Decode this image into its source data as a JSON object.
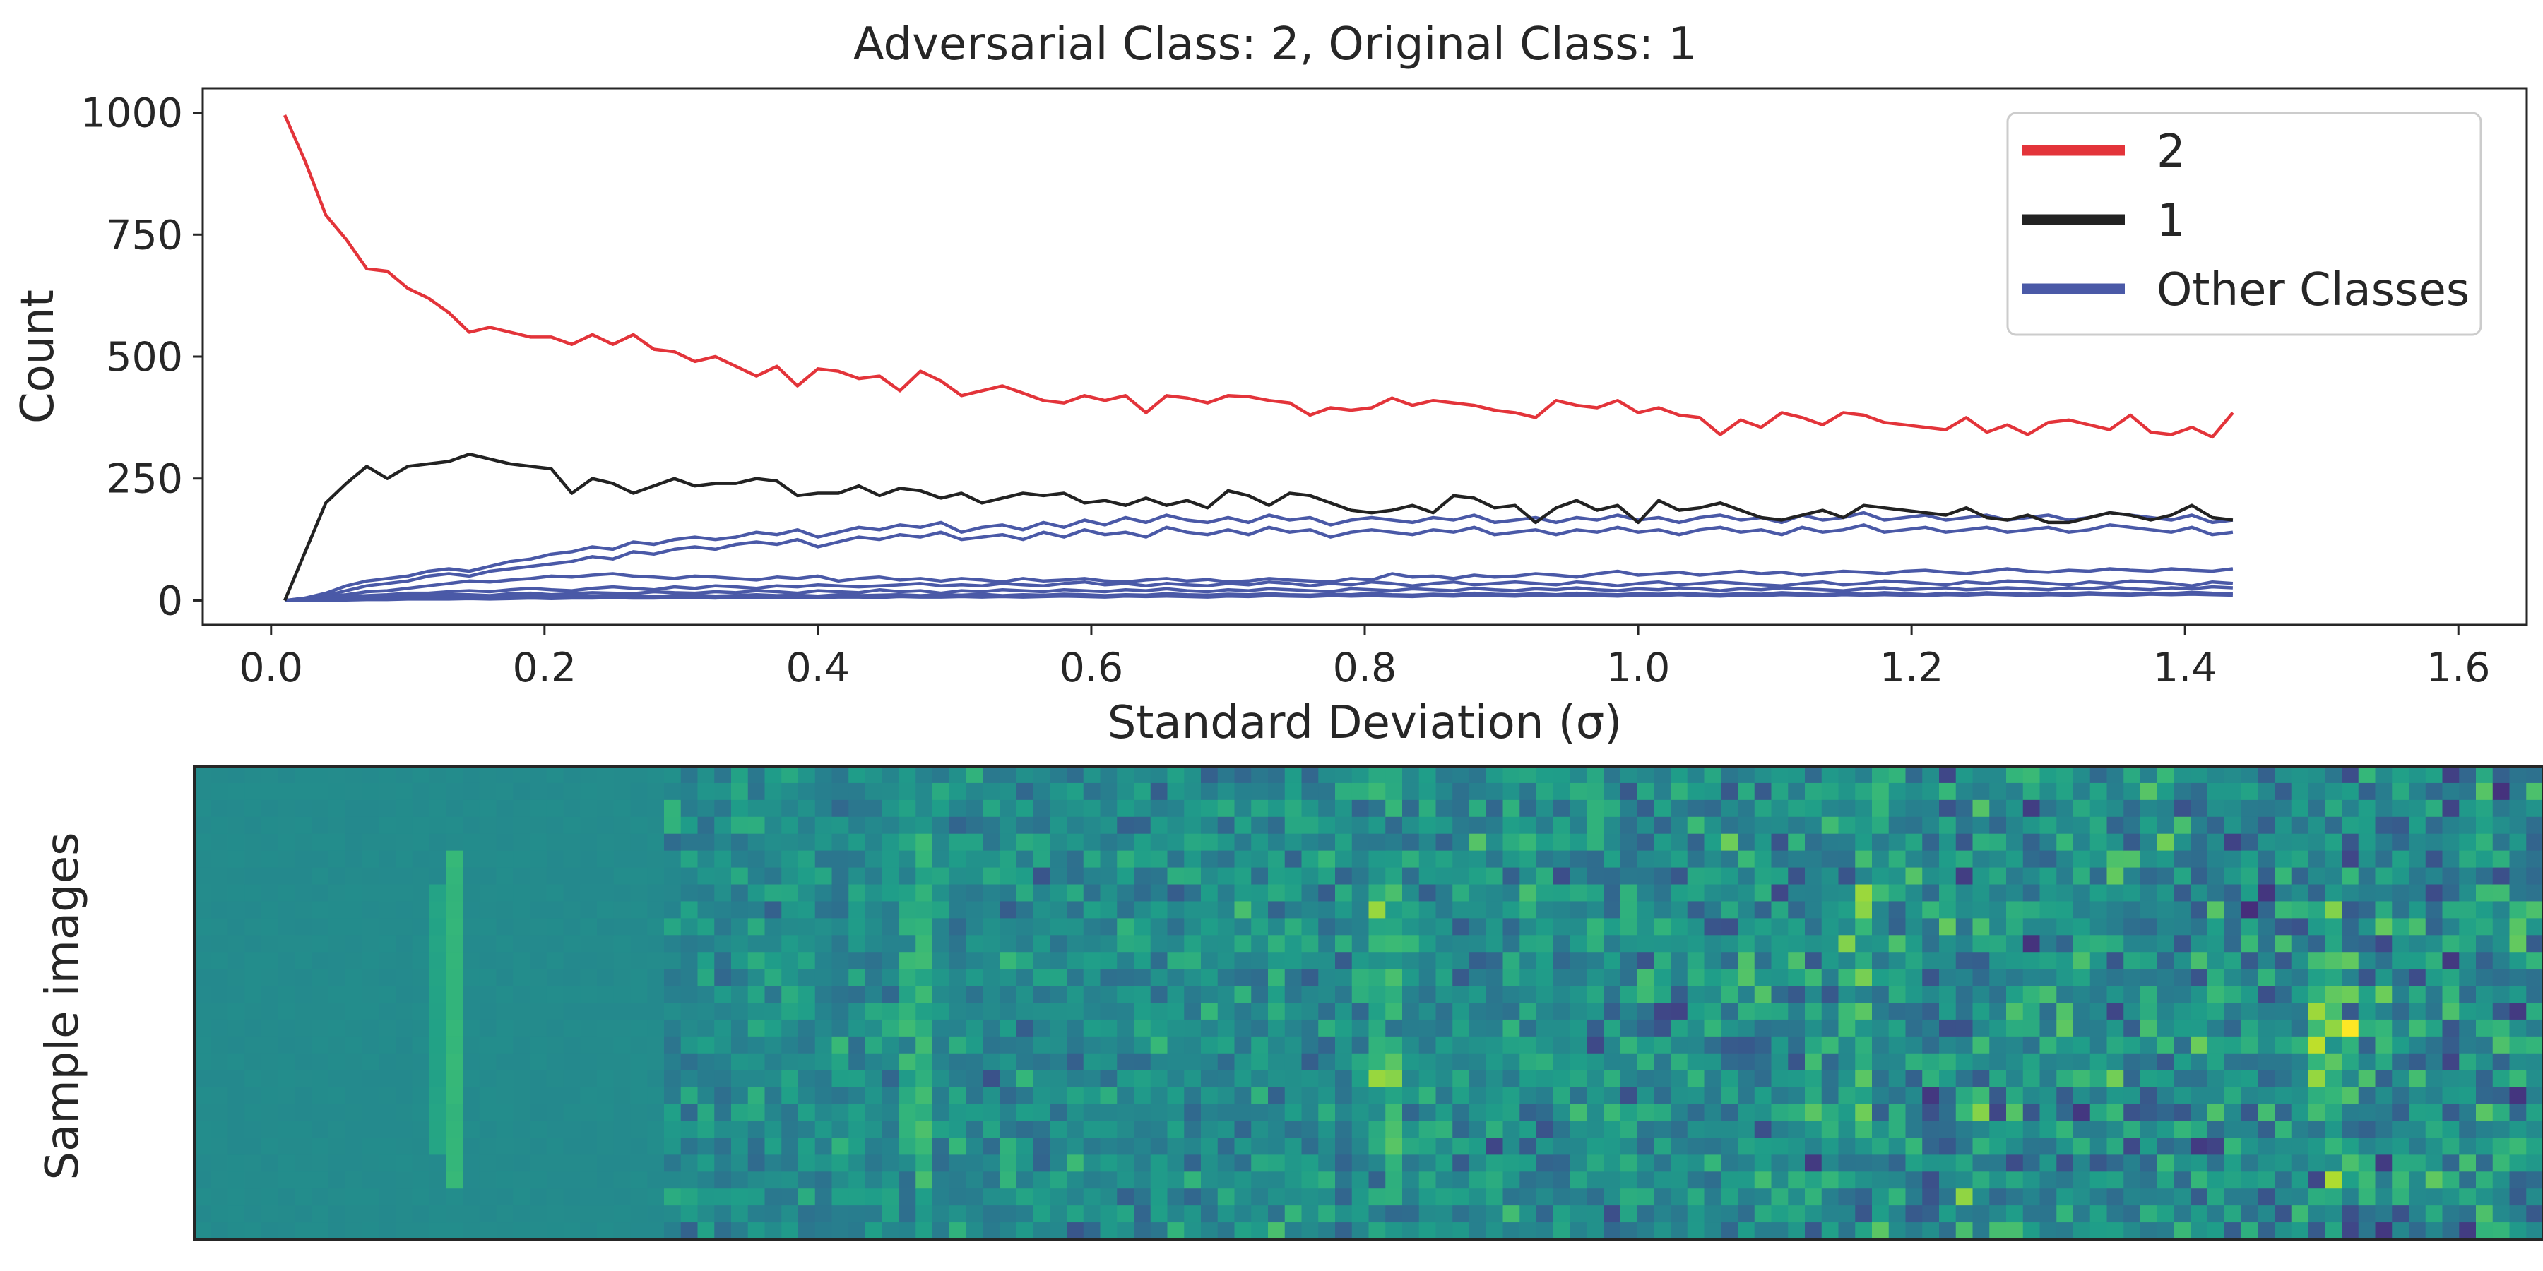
{
  "chart_data": [
    {
      "type": "line",
      "title": "Adversarial Class: 2, Original Class: 1",
      "xlabel": "Standard Deviation (σ)",
      "ylabel": "Count",
      "xlim": [
        -0.05,
        1.65
      ],
      "ylim": [
        -50,
        1050
      ],
      "xticks": [
        0.0,
        0.2,
        0.4,
        0.6,
        0.8,
        1.0,
        1.2,
        1.4,
        1.6
      ],
      "xtick_labels": [
        "0.0",
        "0.2",
        "0.4",
        "0.6",
        "0.8",
        "1.0",
        "1.2",
        "1.4",
        "1.6"
      ],
      "yticks": [
        0,
        250,
        500,
        750,
        1000
      ],
      "ytick_labels": [
        "0",
        "250",
        "500",
        "750",
        "1000"
      ],
      "grid": false,
      "legend": {
        "position": "top-right",
        "entries": [
          "2",
          "1",
          "Other Classes"
        ]
      },
      "colors": {
        "adversarial": "#e3343a",
        "original": "#222222",
        "other": "#4a59a7"
      },
      "x": {
        "start": 0.01,
        "step": 0.015,
        "count": 96
      },
      "series": [
        {
          "name": "2",
          "color": "#e3343a",
          "values": [
            995,
            900,
            790,
            740,
            680,
            675,
            640,
            620,
            590,
            550,
            560,
            550,
            540,
            540,
            525,
            545,
            525,
            545,
            515,
            510,
            490,
            500,
            480,
            460,
            480,
            440,
            475,
            470,
            455,
            460,
            430,
            470,
            450,
            420,
            430,
            440,
            425,
            410,
            405,
            420,
            410,
            420,
            385,
            420,
            415,
            405,
            420,
            418,
            410,
            405,
            380,
            395,
            390,
            395,
            415,
            400,
            410,
            405,
            400,
            390,
            385,
            375,
            410,
            400,
            395,
            410,
            385,
            395,
            380,
            375,
            340,
            370,
            355,
            385,
            375,
            360,
            385,
            380,
            365,
            360,
            355,
            350,
            375,
            345,
            360,
            340,
            365,
            370,
            360,
            350,
            380,
            345,
            340,
            355,
            335,
            385
          ]
        },
        {
          "name": "1",
          "color": "#222222",
          "values": [
            0,
            100,
            200,
            240,
            275,
            250,
            275,
            280,
            285,
            300,
            290,
            280,
            275,
            270,
            220,
            250,
            240,
            220,
            235,
            250,
            235,
            240,
            240,
            250,
            245,
            215,
            220,
            220,
            235,
            215,
            230,
            225,
            210,
            220,
            200,
            210,
            220,
            215,
            220,
            200,
            205,
            195,
            210,
            195,
            205,
            190,
            225,
            215,
            195,
            220,
            215,
            200,
            185,
            180,
            185,
            195,
            180,
            215,
            210,
            190,
            195,
            160,
            190,
            205,
            185,
            195,
            160,
            205,
            185,
            190,
            200,
            185,
            170,
            165,
            175,
            185,
            170,
            195,
            190,
            185,
            180,
            175,
            190,
            170,
            165,
            175,
            160,
            160,
            170,
            180,
            175,
            165,
            175,
            195,
            170,
            165
          ]
        },
        {
          "name": "",
          "color": "#4a59a7",
          "values": [
            0,
            5,
            15,
            30,
            40,
            45,
            50,
            60,
            65,
            60,
            70,
            80,
            85,
            95,
            100,
            110,
            105,
            120,
            115,
            125,
            130,
            125,
            130,
            140,
            135,
            145,
            130,
            140,
            150,
            145,
            155,
            150,
            160,
            140,
            150,
            155,
            145,
            160,
            150,
            165,
            155,
            170,
            160,
            175,
            165,
            160,
            170,
            160,
            175,
            165,
            170,
            155,
            165,
            170,
            165,
            160,
            170,
            165,
            175,
            160,
            165,
            170,
            160,
            170,
            165,
            175,
            165,
            170,
            160,
            170,
            175,
            165,
            170,
            160,
            175,
            165,
            170,
            180,
            165,
            170,
            175,
            165,
            170,
            175,
            165,
            170,
            175,
            165,
            170,
            180,
            175,
            170,
            165,
            175,
            160,
            165
          ]
        },
        {
          "name": "",
          "color": "#4a59a7",
          "values": [
            0,
            5,
            10,
            20,
            30,
            35,
            40,
            50,
            55,
            50,
            60,
            65,
            70,
            75,
            80,
            90,
            85,
            100,
            95,
            105,
            110,
            105,
            115,
            120,
            115,
            125,
            110,
            120,
            130,
            125,
            135,
            130,
            140,
            125,
            130,
            135,
            125,
            140,
            130,
            145,
            135,
            140,
            130,
            150,
            140,
            135,
            145,
            135,
            150,
            140,
            145,
            130,
            140,
            145,
            140,
            135,
            145,
            140,
            150,
            135,
            140,
            145,
            135,
            145,
            140,
            150,
            140,
            145,
            135,
            145,
            150,
            140,
            145,
            135,
            150,
            140,
            145,
            155,
            140,
            145,
            150,
            140,
            145,
            150,
            140,
            145,
            150,
            140,
            145,
            155,
            150,
            145,
            140,
            150,
            135,
            140
          ]
        },
        {
          "name": "",
          "color": "#4a59a7",
          "values": [
            0,
            3,
            8,
            12,
            18,
            20,
            25,
            30,
            35,
            40,
            38,
            42,
            45,
            50,
            48,
            52,
            55,
            50,
            48,
            45,
            50,
            48,
            45,
            42,
            48,
            45,
            50,
            40,
            45,
            48,
            42,
            45,
            40,
            45,
            42,
            38,
            45,
            40,
            42,
            45,
            40,
            38,
            42,
            45,
            40,
            43,
            38,
            40,
            45,
            42,
            40,
            38,
            45,
            42,
            55,
            48,
            50,
            45,
            52,
            48,
            50,
            55,
            52,
            48,
            55,
            60,
            52,
            55,
            58,
            52,
            56,
            60,
            55,
            58,
            52,
            56,
            60,
            58,
            55,
            60,
            62,
            58,
            55,
            60,
            65,
            60,
            58,
            62,
            60,
            65,
            62,
            60,
            65,
            62,
            60,
            65
          ]
        },
        {
          "name": "",
          "color": "#4a59a7",
          "values": [
            0,
            2,
            5,
            8,
            10,
            12,
            15,
            15,
            18,
            20,
            18,
            22,
            25,
            22,
            20,
            25,
            28,
            25,
            22,
            28,
            25,
            30,
            28,
            25,
            30,
            28,
            32,
            30,
            28,
            30,
            32,
            35,
            30,
            32,
            30,
            35,
            32,
            30,
            35,
            38,
            32,
            35,
            30,
            35,
            32,
            30,
            35,
            32,
            38,
            35,
            30,
            35,
            32,
            38,
            35,
            30,
            35,
            38,
            32,
            35,
            38,
            35,
            32,
            38,
            35,
            30,
            35,
            38,
            32,
            35,
            38,
            35,
            32,
            30,
            35,
            38,
            32,
            35,
            40,
            38,
            35,
            32,
            38,
            35,
            40,
            38,
            35,
            32,
            38,
            35,
            40,
            38,
            35,
            30,
            38,
            35
          ]
        },
        {
          "name": "",
          "color": "#4a59a7",
          "values": [
            0,
            1,
            3,
            5,
            6,
            8,
            10,
            10,
            12,
            12,
            10,
            14,
            15,
            12,
            14,
            16,
            15,
            14,
            18,
            16,
            15,
            18,
            16,
            20,
            18,
            15,
            20,
            18,
            16,
            22,
            18,
            20,
            15,
            20,
            18,
            22,
            20,
            18,
            22,
            20,
            18,
            22,
            20,
            24,
            20,
            18,
            22,
            20,
            24,
            22,
            20,
            18,
            24,
            22,
            20,
            24,
            22,
            20,
            25,
            22,
            20,
            24,
            22,
            26,
            22,
            20,
            24,
            22,
            26,
            24,
            20,
            24,
            22,
            26,
            24,
            22,
            20,
            24,
            26,
            22,
            24,
            26,
            22,
            24,
            26,
            24,
            22,
            26,
            24,
            28,
            24,
            22,
            26,
            24,
            28,
            26
          ]
        },
        {
          "name": "",
          "color": "#4a59a7",
          "values": [
            0,
            1,
            2,
            3,
            4,
            5,
            5,
            6,
            6,
            7,
            6,
            8,
            8,
            7,
            9,
            8,
            10,
            9,
            8,
            10,
            11,
            9,
            10,
            12,
            10,
            11,
            9,
            12,
            10,
            11,
            12,
            10,
            12,
            11,
            13,
            10,
            12,
            11,
            13,
            12,
            10,
            12,
            11,
            14,
            12,
            11,
            13,
            12,
            14,
            12,
            11,
            13,
            12,
            15,
            12,
            11,
            13,
            12,
            15,
            13,
            12,
            14,
            12,
            15,
            13,
            12,
            14,
            13,
            15,
            13,
            12,
            14,
            13,
            16,
            14,
            12,
            14,
            13,
            16,
            14,
            12,
            15,
            13,
            16,
            14,
            13,
            15,
            14,
            16,
            14,
            13,
            15,
            14,
            17,
            15,
            14
          ]
        },
        {
          "name": "",
          "color": "#4a59a7",
          "values": [
            0,
            0,
            1,
            1,
            2,
            2,
            3,
            3,
            3,
            4,
            3,
            4,
            5,
            4,
            5,
            5,
            6,
            5,
            5,
            6,
            6,
            5,
            7,
            6,
            6,
            7,
            6,
            7,
            7,
            6,
            8,
            7,
            7,
            8,
            7,
            8,
            7,
            8,
            9,
            8,
            7,
            9,
            8,
            9,
            8,
            7,
            9,
            8,
            10,
            9,
            8,
            10,
            9,
            10,
            9,
            8,
            10,
            9,
            11,
            10,
            9,
            11,
            10,
            11,
            10,
            9,
            11,
            10,
            12,
            10,
            9,
            11,
            10,
            12,
            11,
            10,
            12,
            11,
            12,
            11,
            10,
            12,
            11,
            13,
            12,
            10,
            12,
            11,
            13,
            12,
            11,
            13,
            12,
            13,
            12,
            11
          ]
        }
      ]
    },
    {
      "type": "heatmap",
      "ylabel": "Sample images",
      "colormap": "viridis",
      "rows": 28,
      "cols": 140,
      "sigma_range": [
        0.01,
        1.44
      ],
      "clean_cols": 28,
      "digit_column": 15,
      "bright_pixel": {
        "row": 15,
        "col": 128
      }
    }
  ]
}
